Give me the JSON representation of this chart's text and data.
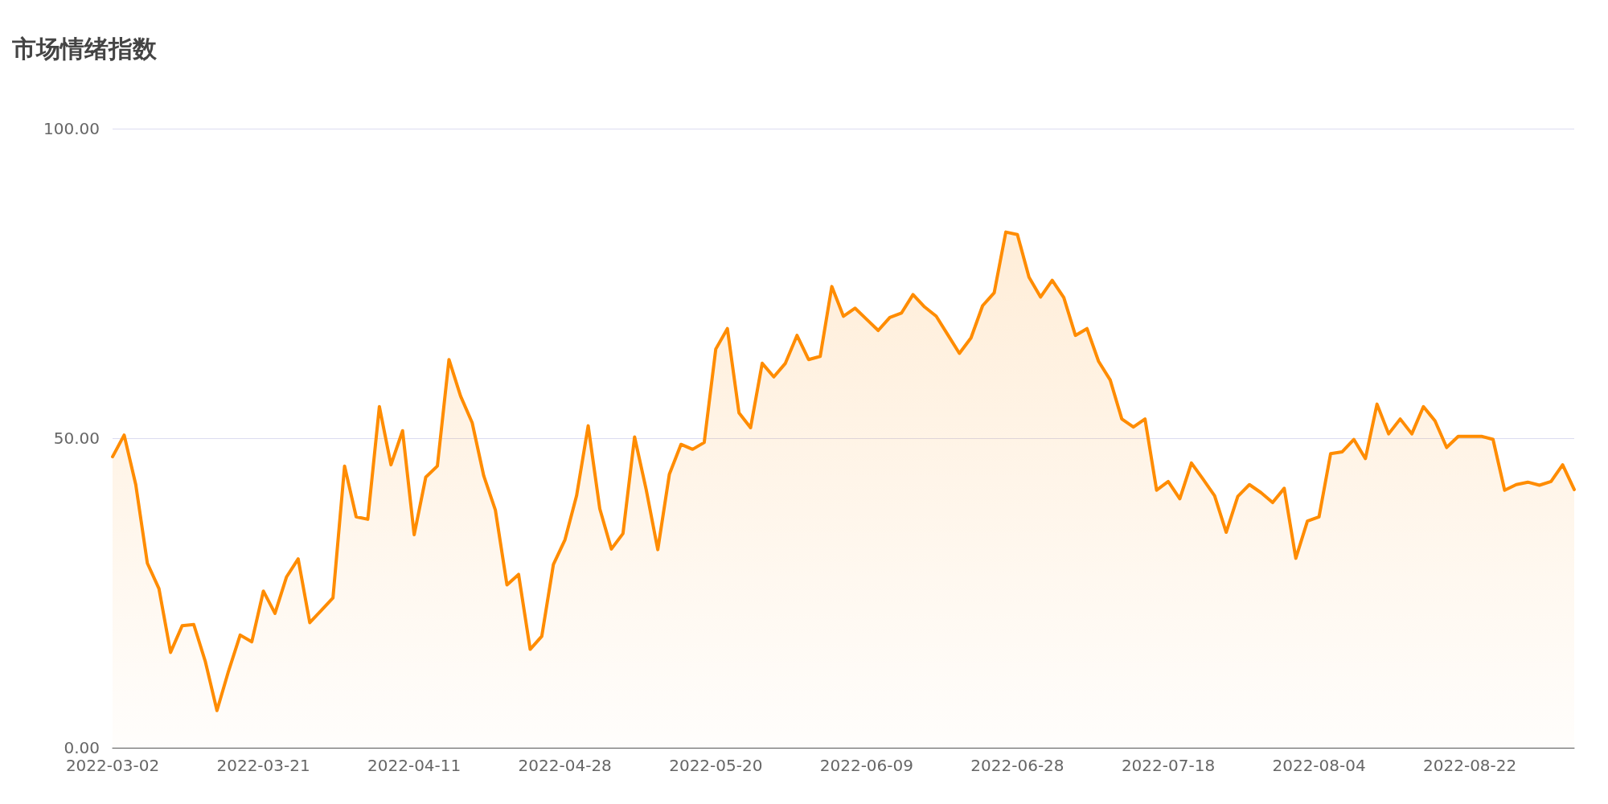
{
  "chart_data": {
    "type": "area",
    "title": "市场情绪指数",
    "categories": [
      "2022-03-02",
      null,
      null,
      null,
      null,
      null,
      null,
      null,
      null,
      null,
      null,
      null,
      null,
      "2022-03-21",
      null,
      null,
      null,
      null,
      null,
      null,
      null,
      null,
      null,
      null,
      null,
      null,
      "2022-04-11",
      null,
      null,
      null,
      null,
      null,
      null,
      null,
      null,
      null,
      null,
      null,
      null,
      "2022-04-28",
      null,
      null,
      null,
      null,
      null,
      null,
      null,
      null,
      null,
      null,
      null,
      null,
      "2022-05-20",
      null,
      null,
      null,
      null,
      null,
      null,
      null,
      null,
      null,
      null,
      null,
      null,
      "2022-06-09",
      null,
      null,
      null,
      null,
      null,
      null,
      null,
      null,
      null,
      null,
      null,
      null,
      "2022-06-28",
      null,
      null,
      null,
      null,
      null,
      null,
      null,
      null,
      null,
      null,
      null,
      null,
      "2022-07-18",
      null,
      null,
      null,
      null,
      null,
      null,
      null,
      null,
      null,
      null,
      null,
      null,
      "2022-08-04",
      null,
      null,
      null,
      null,
      null,
      null,
      null,
      null,
      null,
      null,
      null,
      null,
      "2022-08-22",
      null,
      null,
      null,
      null,
      null,
      null,
      null,
      null,
      null
    ],
    "series": [
      {
        "color": "#ff8c00",
        "values": [
          47.0,
          50.5,
          42.5,
          29.8,
          25.7,
          15.4,
          19.7,
          19.9,
          13.9,
          6.0,
          12.4,
          18.2,
          17.1,
          25.3,
          21.7,
          27.6,
          30.5,
          20.2,
          22.2,
          24.2,
          45.5,
          37.3,
          36.9,
          55.1,
          45.7,
          51.2,
          34.4,
          43.7,
          45.5,
          62.7,
          56.8,
          52.5,
          43.9,
          38.4,
          26.3,
          28.0,
          15.9,
          18.0,
          29.6,
          33.6,
          40.7,
          52.0,
          38.6,
          32.1,
          34.6,
          50.2,
          41.7,
          32.0,
          44.2,
          49.0,
          48.2,
          49.3,
          64.4,
          67.7,
          54.1,
          51.7,
          62.1,
          59.9,
          62.1,
          66.6,
          62.7,
          63.2,
          74.5,
          69.7,
          71.0,
          69.2,
          67.4,
          69.5,
          70.2,
          73.2,
          71.2,
          69.7,
          66.7,
          63.7,
          66.2,
          71.4,
          73.5,
          83.3,
          82.9,
          76.0,
          72.8,
          75.5,
          72.7,
          66.6,
          67.7,
          62.4,
          59.4,
          53.1,
          51.8,
          53.1,
          41.6,
          43.0,
          40.2,
          46.0,
          43.4,
          40.7,
          34.8,
          40.6,
          42.5,
          41.2,
          39.6,
          41.9,
          30.6,
          36.6,
          37.3,
          47.5,
          47.8,
          49.8,
          46.7,
          55.5,
          50.7,
          53.1,
          50.7,
          55.1,
          52.8,
          48.5,
          50.3,
          50.3,
          50.3,
          49.8,
          41.6,
          42.5,
          42.9,
          42.4,
          43.0,
          45.7,
          41.7
        ]
      }
    ],
    "ylim": [
      0,
      100
    ],
    "yticks": [
      {
        "value": 0,
        "label": "0.00"
      },
      {
        "value": 50,
        "label": "50.00"
      },
      {
        "value": 100,
        "label": "100.00"
      }
    ],
    "grid": "y",
    "marker": "none",
    "line_style": "solid"
  }
}
